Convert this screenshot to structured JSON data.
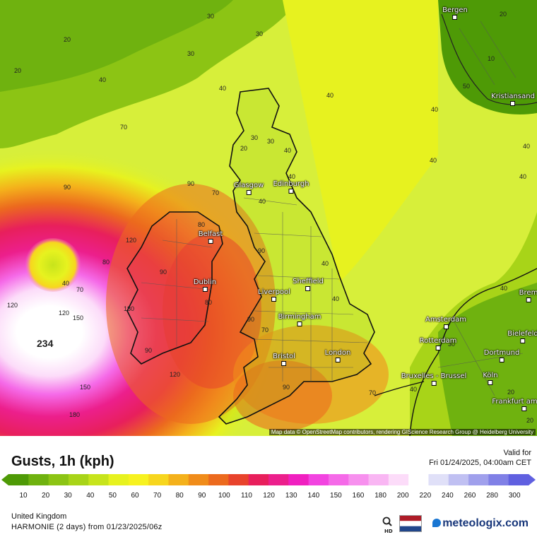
{
  "map": {
    "attribution": "Map data © OpenStreetMap contributors, rendering GIScience Research Group @ Heidelberg University",
    "max_value_label": "234",
    "cities": [
      {
        "name": "Bergen"
      },
      {
        "name": "Kristiansand"
      },
      {
        "name": "Glasgow"
      },
      {
        "name": "Edinburgh"
      },
      {
        "name": "Belfast"
      },
      {
        "name": "Dublin"
      },
      {
        "name": "Liverpool"
      },
      {
        "name": "Sheffield"
      },
      {
        "name": "Birmingham"
      },
      {
        "name": "Bristol"
      },
      {
        "name": "London"
      },
      {
        "name": "Amsterdam"
      },
      {
        "name": "Rotterdam"
      },
      {
        "name": "Bruxelles - Brussel"
      },
      {
        "name": "Dortmund"
      },
      {
        "name": "Bielefeld"
      },
      {
        "name": "Köln"
      },
      {
        "name": "Frankfurt am Main"
      },
      {
        "name": "Brem"
      }
    ],
    "contour_labels": [
      "30",
      "20",
      "30",
      "20",
      "30",
      "40",
      "30",
      "40",
      "20",
      "10",
      "20",
      "40",
      "40",
      "40",
      "70",
      "90",
      "80",
      "70",
      "80",
      "90",
      "90",
      "70",
      "120",
      "90",
      "150",
      "180",
      "120",
      "150",
      "120",
      "180",
      "120",
      "90",
      "80",
      "90",
      "70",
      "90",
      "40",
      "40",
      "40",
      "40",
      "40",
      "50",
      "70",
      "40",
      "40",
      "40",
      "40",
      "30",
      "20",
      "20",
      "30",
      "40"
    ]
  },
  "legend": {
    "title": "Gusts, 1h (kph)",
    "valid_label": "Valid for",
    "valid_time": "Fri 01/24/2025, 04:00am CET",
    "ticks": [
      "10",
      "20",
      "30",
      "40",
      "50",
      "60",
      "70",
      "80",
      "90",
      "100",
      "110",
      "120",
      "130",
      "140",
      "150",
      "160",
      "180",
      "200",
      "220",
      "240",
      "260",
      "280",
      "300"
    ],
    "colors": [
      "#4e9a06",
      "#6fb20f",
      "#8cc414",
      "#a8d418",
      "#c7e41c",
      "#e7f21f",
      "#f7f220",
      "#f7d61e",
      "#f4b11b",
      "#f08c1a",
      "#ec6a1e",
      "#e8432c",
      "#e81f5c",
      "#ec1f8c",
      "#f020c0",
      "#f244e0",
      "#f56ae8",
      "#f790ee",
      "#f9b6f3",
      "#fcdcf9",
      "#ffffff",
      "#e0e0f8",
      "#c0c0f2",
      "#a0a0ec",
      "#8080e6",
      "#6060e0"
    ]
  },
  "footer": {
    "region": "United Kingdom",
    "model": "HARMONIE (2 days) from 01/23/2025/06z",
    "brand": "meteologix.com",
    "hd_label": "HD"
  }
}
